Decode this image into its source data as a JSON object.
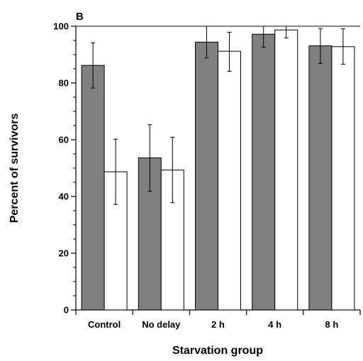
{
  "chart_data": {
    "type": "bar",
    "panel_label": "B",
    "xlabel": "Starvation group",
    "ylabel": "Percent of survivors",
    "ylim": [
      0,
      100
    ],
    "yticks": [
      0,
      20,
      40,
      60,
      80,
      100
    ],
    "categories": [
      "Control",
      "No delay",
      "2 h",
      "4 h",
      "8 h"
    ],
    "series": [
      {
        "color": "#808080",
        "values": [
          86.2,
          53.6,
          94.4,
          97.2,
          93.1
        ],
        "err_low": [
          78.2,
          41.8,
          88.8,
          92.6,
          86.9
        ],
        "err_high": [
          94.2,
          65.3,
          100,
          100,
          99.2
        ]
      },
      {
        "color": "#ffffff",
        "values": [
          48.7,
          49.3,
          91.2,
          98.7,
          92.8
        ],
        "err_low": [
          37.2,
          37.8,
          84.1,
          95.9,
          86.6
        ],
        "err_high": [
          60.2,
          60.9,
          97.9,
          100,
          99.1
        ]
      }
    ],
    "grid": false,
    "legend": "none"
  }
}
